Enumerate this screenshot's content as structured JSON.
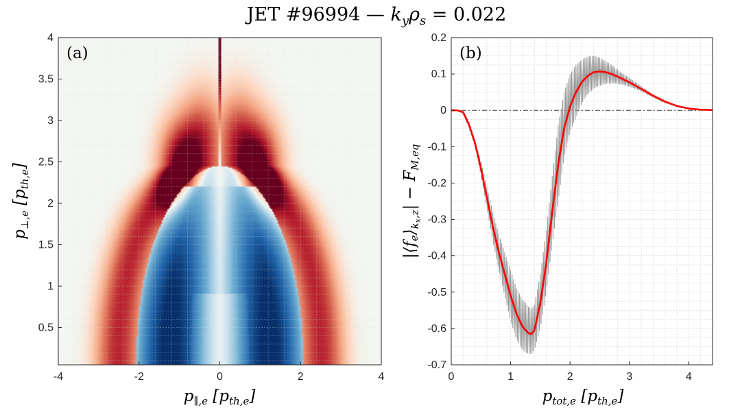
{
  "figure": {
    "title": "JET #96994 — k_yρ_s = 0.022"
  },
  "chart_data": [
    {
      "panel_label": "(a)",
      "type": "heatmap",
      "xlabel": "p_{∥,e} [p_{th,e}]",
      "ylabel": "p_{⊥,e} [p_{th,e}]",
      "xlim": [
        -4,
        4
      ],
      "ylim": [
        0.05,
        4
      ],
      "xticks": [
        "-4",
        "-2",
        "0",
        "2",
        "4"
      ],
      "yticks": [
        "0.5",
        "1",
        "1.5",
        "2",
        "2.5",
        "3",
        "3.5",
        "4"
      ],
      "grid": true,
      "colormap": "diverging blue-white-red",
      "features": [
        {
          "kind": "negative lobe (blue)",
          "x_range": [
            -2.0,
            2.0
          ],
          "y_range": [
            0.05,
            2.4
          ],
          "minimum_near": [
            0,
            0.3
          ]
        },
        {
          "kind": "positive lobe (red)",
          "center": [
            -1.0,
            2.3
          ]
        },
        {
          "kind": "positive lobe (red)",
          "center": [
            1.0,
            2.3
          ]
        }
      ]
    },
    {
      "panel_label": "(b)",
      "type": "line",
      "xlabel": "p_{tot,e} [p_{th,e}]",
      "ylabel": "|⟨f_e⟩_{k_x,z}| − F_{M,eq}",
      "xlim": [
        0,
        4.4
      ],
      "ylim": [
        -0.7,
        0.2
      ],
      "xticks": [
        "0",
        "1",
        "2",
        "3",
        "4"
      ],
      "yticks": [
        "0.2",
        "0.1",
        "0",
        "-0.1",
        "-0.2",
        "-0.3",
        "-0.4",
        "-0.5",
        "-0.6",
        "-0.7"
      ],
      "grid": true,
      "reference_line": {
        "y": 0,
        "style": "dash-dot",
        "color": "#404040"
      },
      "series": [
        {
          "color": "#ff0000",
          "x": [
            0,
            0.1,
            0.2,
            0.3,
            0.4,
            0.5,
            0.6,
            0.7,
            0.8,
            0.9,
            1.0,
            1.1,
            1.2,
            1.3,
            1.35,
            1.4,
            1.5,
            1.6,
            1.7,
            1.8,
            1.9,
            2.0,
            2.1,
            2.2,
            2.3,
            2.4,
            2.5,
            2.6,
            2.7,
            2.8,
            2.9,
            3.0,
            3.2,
            3.4,
            3.6,
            3.8,
            4.0,
            4.2,
            4.4
          ],
          "y": [
            0,
            0,
            -0.005,
            -0.04,
            -0.09,
            -0.16,
            -0.24,
            -0.32,
            -0.39,
            -0.45,
            -0.51,
            -0.56,
            -0.595,
            -0.613,
            -0.615,
            -0.605,
            -0.53,
            -0.42,
            -0.28,
            -0.15,
            -0.05,
            0.01,
            0.05,
            0.078,
            0.095,
            0.105,
            0.107,
            0.105,
            0.1,
            0.093,
            0.085,
            0.077,
            0.059,
            0.04,
            0.024,
            0.012,
            0.005,
            0.002,
            0.001
          ]
        },
        {
          "color": "#999999",
          "x": [
            0,
            0.1,
            0.2,
            0.3,
            0.4,
            0.5,
            0.6,
            0.7,
            0.8,
            0.9,
            1.0,
            1.1,
            1.2,
            1.3,
            1.35,
            1.4,
            1.5,
            1.6,
            1.7,
            1.8,
            1.9,
            2.0,
            2.1,
            2.2,
            2.3,
            2.4,
            2.5,
            2.6,
            2.7,
            2.8,
            2.9,
            3.0,
            3.2,
            3.4,
            3.6,
            3.8,
            4.0,
            4.2,
            4.4
          ],
          "y_upper": [
            0,
            0,
            0,
            -0.03,
            -0.08,
            -0.14,
            -0.21,
            -0.28,
            -0.34,
            -0.39,
            -0.44,
            -0.49,
            -0.52,
            -0.54,
            -0.545,
            -0.535,
            -0.45,
            -0.33,
            -0.18,
            -0.04,
            0.05,
            0.1,
            0.125,
            0.14,
            0.148,
            0.15,
            0.145,
            0.135,
            0.125,
            0.112,
            0.1,
            0.09,
            0.066,
            0.045,
            0.027,
            0.013,
            0.006,
            0.002,
            0.001
          ],
          "y_lower": [
            0,
            0,
            -0.01,
            -0.05,
            -0.1,
            -0.18,
            -0.27,
            -0.36,
            -0.44,
            -0.51,
            -0.58,
            -0.63,
            -0.66,
            -0.67,
            -0.67,
            -0.66,
            -0.6,
            -0.5,
            -0.37,
            -0.25,
            -0.13,
            -0.06,
            -0.02,
            0.02,
            0.045,
            0.06,
            0.068,
            0.073,
            0.074,
            0.073,
            0.07,
            0.065,
            0.052,
            0.035,
            0.021,
            0.011,
            0.004,
            0.002,
            0.001
          ]
        }
      ]
    }
  ]
}
